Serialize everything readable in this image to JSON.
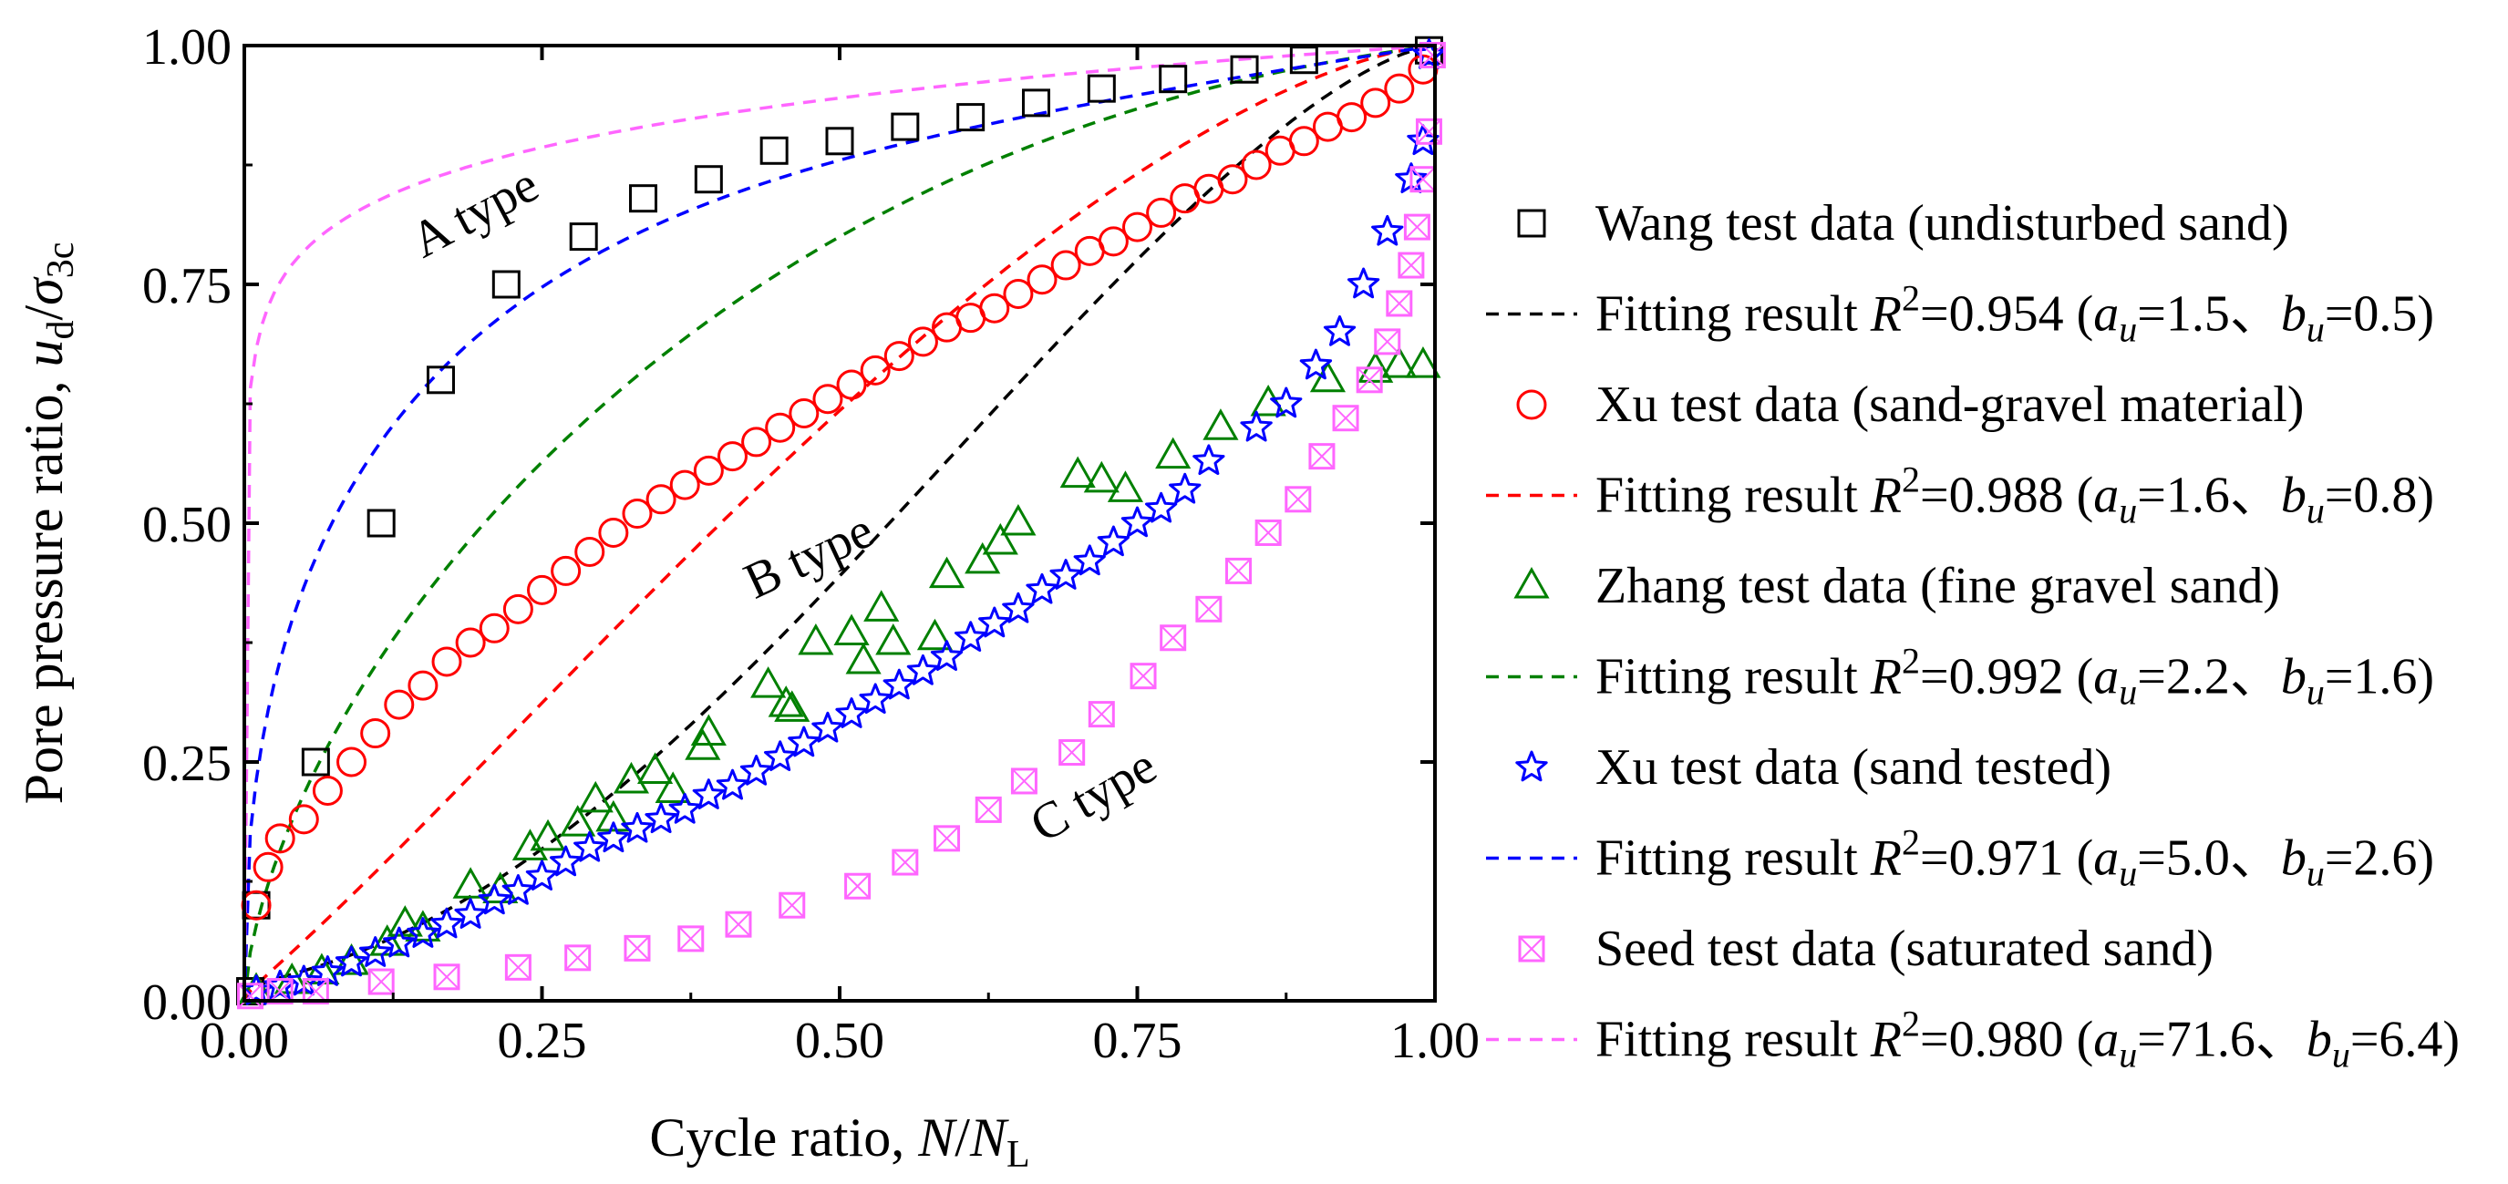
{
  "chart_data": {
    "type": "scatter",
    "title": "",
    "xlabel": "Cycle ratio, N/NL",
    "ylabel": "Pore pressure ratio, ud/σ3c",
    "xlim": [
      0,
      1
    ],
    "ylim": [
      0,
      1
    ],
    "x_ticks": [
      "0.00",
      "0.25",
      "0.50",
      "0.75",
      "1.00"
    ],
    "y_ticks": [
      "0.00",
      "0.25",
      "0.50",
      "0.75",
      "1.00"
    ],
    "grid": false,
    "legend_position": "right",
    "annotations": [
      {
        "id": "a",
        "text": "A type",
        "x": 0.2,
        "y": 0.81,
        "rotation": -28
      },
      {
        "id": "b",
        "text": "B type",
        "x": 0.48,
        "y": 0.45,
        "rotation": -25
      },
      {
        "id": "c",
        "text": "C type",
        "x": 0.72,
        "y": 0.2,
        "rotation": -30
      }
    ],
    "series": [
      {
        "name": "Wang test data (undisturbed sand)",
        "kind": "points",
        "marker": "square",
        "color": "#000000",
        "points": [
          [
            0.005,
            0.01
          ],
          [
            0.01,
            0.1
          ],
          [
            0.06,
            0.25
          ],
          [
            0.115,
            0.5
          ],
          [
            0.165,
            0.65
          ],
          [
            0.22,
            0.75
          ],
          [
            0.285,
            0.8
          ],
          [
            0.335,
            0.84
          ],
          [
            0.39,
            0.86
          ],
          [
            0.445,
            0.89
          ],
          [
            0.5,
            0.9
          ],
          [
            0.555,
            0.915
          ],
          [
            0.61,
            0.925
          ],
          [
            0.665,
            0.94
          ],
          [
            0.72,
            0.955
          ],
          [
            0.78,
            0.965
          ],
          [
            0.84,
            0.975
          ],
          [
            0.89,
            0.985
          ],
          [
            0.995,
            0.995
          ]
        ]
      },
      {
        "name": "Fitting result R2=0.954 (au=1.5、bu=0.5)",
        "legend": {
          "prefix": "Fitting result ",
          "r2": "0.954",
          "au": "1.5",
          "bu": "0.5"
        },
        "kind": "fit",
        "color": "#000000",
        "au": 1.5,
        "bu": 0.5
      },
      {
        "name": "Xu test data (sand-gravel material)",
        "kind": "points",
        "marker": "circle",
        "color": "#ff0000",
        "points": [
          [
            0.01,
            0.1
          ],
          [
            0.02,
            0.14
          ],
          [
            0.03,
            0.17
          ],
          [
            0.05,
            0.19
          ],
          [
            0.07,
            0.22
          ],
          [
            0.09,
            0.25
          ],
          [
            0.11,
            0.28
          ],
          [
            0.13,
            0.31
          ],
          [
            0.15,
            0.33
          ],
          [
            0.17,
            0.355
          ],
          [
            0.19,
            0.375
          ],
          [
            0.21,
            0.39
          ],
          [
            0.23,
            0.41
          ],
          [
            0.25,
            0.43
          ],
          [
            0.27,
            0.45
          ],
          [
            0.29,
            0.47
          ],
          [
            0.31,
            0.49
          ],
          [
            0.33,
            0.51
          ],
          [
            0.35,
            0.525
          ],
          [
            0.37,
            0.54
          ],
          [
            0.39,
            0.555
          ],
          [
            0.41,
            0.57
          ],
          [
            0.43,
            0.585
          ],
          [
            0.45,
            0.6
          ],
          [
            0.47,
            0.615
          ],
          [
            0.49,
            0.63
          ],
          [
            0.51,
            0.645
          ],
          [
            0.53,
            0.66
          ],
          [
            0.55,
            0.675
          ],
          [
            0.57,
            0.69
          ],
          [
            0.59,
            0.705
          ],
          [
            0.61,
            0.715
          ],
          [
            0.63,
            0.725
          ],
          [
            0.65,
            0.74
          ],
          [
            0.67,
            0.755
          ],
          [
            0.69,
            0.77
          ],
          [
            0.71,
            0.785
          ],
          [
            0.73,
            0.795
          ],
          [
            0.75,
            0.81
          ],
          [
            0.77,
            0.825
          ],
          [
            0.79,
            0.84
          ],
          [
            0.81,
            0.85
          ],
          [
            0.83,
            0.86
          ],
          [
            0.85,
            0.875
          ],
          [
            0.87,
            0.89
          ],
          [
            0.89,
            0.9
          ],
          [
            0.91,
            0.915
          ],
          [
            0.93,
            0.925
          ],
          [
            0.95,
            0.94
          ],
          [
            0.97,
            0.955
          ],
          [
            0.99,
            0.975
          ]
        ]
      },
      {
        "name": "Fitting result R2=0.988 (au=1.6、bu=0.8)",
        "legend": {
          "prefix": "Fitting result ",
          "r2": "0.988",
          "au": "1.6",
          "bu": "0.8"
        },
        "kind": "fit",
        "color": "#ff0000",
        "au": 1.6,
        "bu": 0.8
      },
      {
        "name": "Zhang test data (fine gravel sand)",
        "kind": "points",
        "marker": "triangle",
        "color": "#008000",
        "points": [
          [
            0.01,
            0.01
          ],
          [
            0.04,
            0.02
          ],
          [
            0.065,
            0.03
          ],
          [
            0.09,
            0.04
          ],
          [
            0.12,
            0.06
          ],
          [
            0.135,
            0.08
          ],
          [
            0.15,
            0.075
          ],
          [
            0.19,
            0.12
          ],
          [
            0.215,
            0.115
          ],
          [
            0.24,
            0.16
          ],
          [
            0.255,
            0.17
          ],
          [
            0.28,
            0.185
          ],
          [
            0.295,
            0.21
          ],
          [
            0.31,
            0.19
          ],
          [
            0.325,
            0.23
          ],
          [
            0.345,
            0.24
          ],
          [
            0.36,
            0.22
          ],
          [
            0.385,
            0.265
          ],
          [
            0.39,
            0.28
          ],
          [
            0.44,
            0.33
          ],
          [
            0.455,
            0.31
          ],
          [
            0.46,
            0.305
          ],
          [
            0.48,
            0.375
          ],
          [
            0.51,
            0.385
          ],
          [
            0.52,
            0.355
          ],
          [
            0.535,
            0.41
          ],
          [
            0.545,
            0.375
          ],
          [
            0.58,
            0.38
          ],
          [
            0.59,
            0.445
          ],
          [
            0.62,
            0.46
          ],
          [
            0.635,
            0.48
          ],
          [
            0.65,
            0.5
          ],
          [
            0.7,
            0.55
          ],
          [
            0.72,
            0.545
          ],
          [
            0.74,
            0.535
          ],
          [
            0.78,
            0.57
          ],
          [
            0.82,
            0.6
          ],
          [
            0.86,
            0.625
          ],
          [
            0.91,
            0.65
          ],
          [
            0.95,
            0.66
          ],
          [
            0.97,
            0.665
          ],
          [
            0.99,
            0.665
          ]
        ]
      },
      {
        "name": "Fitting result R2=0.992 (au=2.2、bu=1.6)",
        "legend": {
          "prefix": "Fitting result ",
          "r2": "0.992",
          "au": "2.2",
          "bu": "1.6"
        },
        "kind": "fit",
        "color": "#008000",
        "au": 2.2,
        "bu": 1.6
      },
      {
        "name": "Xu test data (sand tested)",
        "kind": "points",
        "marker": "star",
        "color": "#0000ff",
        "points": [
          [
            0.01,
            0.01
          ],
          [
            0.03,
            0.015
          ],
          [
            0.05,
            0.02
          ],
          [
            0.07,
            0.03
          ],
          [
            0.09,
            0.04
          ],
          [
            0.11,
            0.05
          ],
          [
            0.13,
            0.06
          ],
          [
            0.15,
            0.07
          ],
          [
            0.17,
            0.08
          ],
          [
            0.19,
            0.09
          ],
          [
            0.21,
            0.105
          ],
          [
            0.23,
            0.115
          ],
          [
            0.25,
            0.13
          ],
          [
            0.27,
            0.145
          ],
          [
            0.29,
            0.16
          ],
          [
            0.31,
            0.17
          ],
          [
            0.33,
            0.18
          ],
          [
            0.35,
            0.19
          ],
          [
            0.37,
            0.2
          ],
          [
            0.39,
            0.215
          ],
          [
            0.41,
            0.225
          ],
          [
            0.43,
            0.24
          ],
          [
            0.45,
            0.255
          ],
          [
            0.47,
            0.27
          ],
          [
            0.49,
            0.285
          ],
          [
            0.51,
            0.3
          ],
          [
            0.53,
            0.315
          ],
          [
            0.55,
            0.33
          ],
          [
            0.57,
            0.345
          ],
          [
            0.59,
            0.36
          ],
          [
            0.61,
            0.38
          ],
          [
            0.63,
            0.395
          ],
          [
            0.65,
            0.41
          ],
          [
            0.67,
            0.43
          ],
          [
            0.69,
            0.445
          ],
          [
            0.71,
            0.46
          ],
          [
            0.73,
            0.48
          ],
          [
            0.75,
            0.5
          ],
          [
            0.77,
            0.515
          ],
          [
            0.79,
            0.535
          ],
          [
            0.81,
            0.565
          ],
          [
            0.85,
            0.6
          ],
          [
            0.875,
            0.625
          ],
          [
            0.9,
            0.665
          ],
          [
            0.92,
            0.7
          ],
          [
            0.94,
            0.75
          ],
          [
            0.96,
            0.805
          ],
          [
            0.98,
            0.86
          ],
          [
            0.99,
            0.9
          ],
          [
            0.995,
            0.99
          ]
        ]
      },
      {
        "name": "Fitting result R2=0.971 (au=5.0、bu=2.6)",
        "legend": {
          "prefix": "Fitting result ",
          "r2": "0.971",
          "au": "5.0",
          "bu": "2.6"
        },
        "kind": "fit",
        "color": "#0000ff",
        "au": 5.0,
        "bu": 2.6
      },
      {
        "name": "Seed test data (saturated sand)",
        "kind": "points",
        "marker": "squarex",
        "color": "#ff66ff",
        "points": [
          [
            0.005,
            0.005
          ],
          [
            0.03,
            0.01
          ],
          [
            0.06,
            0.01
          ],
          [
            0.115,
            0.02
          ],
          [
            0.17,
            0.025
          ],
          [
            0.23,
            0.035
          ],
          [
            0.28,
            0.045
          ],
          [
            0.33,
            0.055
          ],
          [
            0.375,
            0.065
          ],
          [
            0.415,
            0.08
          ],
          [
            0.46,
            0.1
          ],
          [
            0.515,
            0.12
          ],
          [
            0.555,
            0.145
          ],
          [
            0.59,
            0.17
          ],
          [
            0.625,
            0.2
          ],
          [
            0.655,
            0.23
          ],
          [
            0.695,
            0.26
          ],
          [
            0.72,
            0.3
          ],
          [
            0.755,
            0.34
          ],
          [
            0.78,
            0.38
          ],
          [
            0.81,
            0.41
          ],
          [
            0.835,
            0.45
          ],
          [
            0.86,
            0.49
          ],
          [
            0.885,
            0.525
          ],
          [
            0.905,
            0.57
          ],
          [
            0.925,
            0.61
          ],
          [
            0.945,
            0.65
          ],
          [
            0.96,
            0.69
          ],
          [
            0.97,
            0.73
          ],
          [
            0.98,
            0.77
          ],
          [
            0.985,
            0.81
          ],
          [
            0.99,
            0.86
          ],
          [
            0.995,
            0.91
          ],
          [
            0.998,
            0.99
          ]
        ]
      },
      {
        "name": "Fitting result R2=0.980 (au=71.6、bu=6.4)",
        "legend": {
          "prefix": "Fitting result ",
          "r2": "0.980",
          "au": "71.6",
          "bu": "6.4"
        },
        "kind": "fit",
        "color": "#ff66ff",
        "au": 71.6,
        "bu": 6.4
      }
    ]
  }
}
